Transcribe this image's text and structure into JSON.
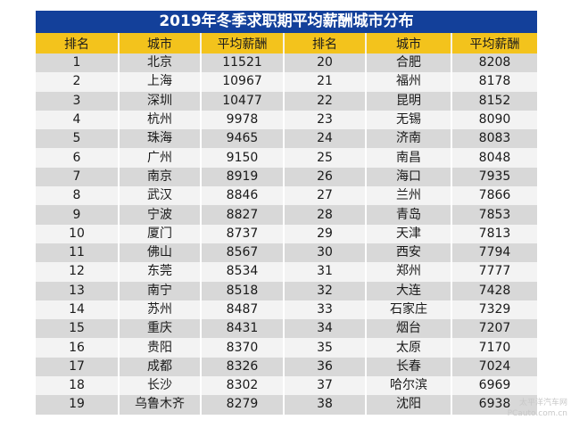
{
  "title": "2019年冬季求职期平均薪酬城市分布",
  "headers": [
    "排名",
    "城市",
    "平均薪酬",
    "排名",
    "城市",
    "平均薪酬"
  ],
  "rows": [
    {
      "rank_l": "1",
      "city_l": "北京",
      "salary_l": "11521",
      "rank_r": "20",
      "city_r": "合肥",
      "salary_r": "8208"
    },
    {
      "rank_l": "2",
      "city_l": "上海",
      "salary_l": "10967",
      "rank_r": "21",
      "city_r": "福州",
      "salary_r": "8178"
    },
    {
      "rank_l": "3",
      "city_l": "深圳",
      "salary_l": "10477",
      "rank_r": "22",
      "city_r": "昆明",
      "salary_r": "8152"
    },
    {
      "rank_l": "4",
      "city_l": "杭州",
      "salary_l": "9978",
      "rank_r": "23",
      "city_r": "无锡",
      "salary_r": "8090"
    },
    {
      "rank_l": "5",
      "city_l": "珠海",
      "salary_l": "9465",
      "rank_r": "24",
      "city_r": "济南",
      "salary_r": "8083"
    },
    {
      "rank_l": "6",
      "city_l": "广州",
      "salary_l": "9150",
      "rank_r": "25",
      "city_r": "南昌",
      "salary_r": "8048"
    },
    {
      "rank_l": "7",
      "city_l": "南京",
      "salary_l": "8919",
      "rank_r": "26",
      "city_r": "海口",
      "salary_r": "7935"
    },
    {
      "rank_l": "8",
      "city_l": "武汉",
      "salary_l": "8846",
      "rank_r": "27",
      "city_r": "兰州",
      "salary_r": "7866"
    },
    {
      "rank_l": "9",
      "city_l": "宁波",
      "salary_l": "8827",
      "rank_r": "28",
      "city_r": "青岛",
      "salary_r": "7853"
    },
    {
      "rank_l": "10",
      "city_l": "厦门",
      "salary_l": "8737",
      "rank_r": "29",
      "city_r": "天津",
      "salary_r": "7813"
    },
    {
      "rank_l": "11",
      "city_l": "佛山",
      "salary_l": "8567",
      "rank_r": "30",
      "city_r": "西安",
      "salary_r": "7794"
    },
    {
      "rank_l": "12",
      "city_l": "东莞",
      "salary_l": "8534",
      "rank_r": "31",
      "city_r": "郑州",
      "salary_r": "7777"
    },
    {
      "rank_l": "13",
      "city_l": "南宁",
      "salary_l": "8518",
      "rank_r": "32",
      "city_r": "大连",
      "salary_r": "7428"
    },
    {
      "rank_l": "14",
      "city_l": "苏州",
      "salary_l": "8487",
      "rank_r": "33",
      "city_r": "石家庄",
      "salary_r": "7329"
    },
    {
      "rank_l": "15",
      "city_l": "重庆",
      "salary_l": "8431",
      "rank_r": "34",
      "city_r": "烟台",
      "salary_r": "7207"
    },
    {
      "rank_l": "16",
      "city_l": "贵阳",
      "salary_l": "8370",
      "rank_r": "35",
      "city_r": "太原",
      "salary_r": "7170"
    },
    {
      "rank_l": "17",
      "city_l": "成都",
      "salary_l": "8326",
      "rank_r": "36",
      "city_r": "长春",
      "salary_r": "7024"
    },
    {
      "rank_l": "18",
      "city_l": "长沙",
      "salary_l": "8302",
      "rank_r": "37",
      "city_r": "哈尔滨",
      "salary_r": "6969"
    },
    {
      "rank_l": "19",
      "city_l": "乌鲁木齐",
      "salary_l": "8279",
      "rank_r": "38",
      "city_r": "沈阳",
      "salary_r": "6938"
    }
  ],
  "watermark": {
    "line1": "太平洋汽车网",
    "line2": "PCauto.com.cn"
  },
  "colors": {
    "title_bg": "#13409a",
    "header_bg": "#f3c31c",
    "row_odd": "#d8d8d8",
    "row_even": "#f3f3f3"
  }
}
